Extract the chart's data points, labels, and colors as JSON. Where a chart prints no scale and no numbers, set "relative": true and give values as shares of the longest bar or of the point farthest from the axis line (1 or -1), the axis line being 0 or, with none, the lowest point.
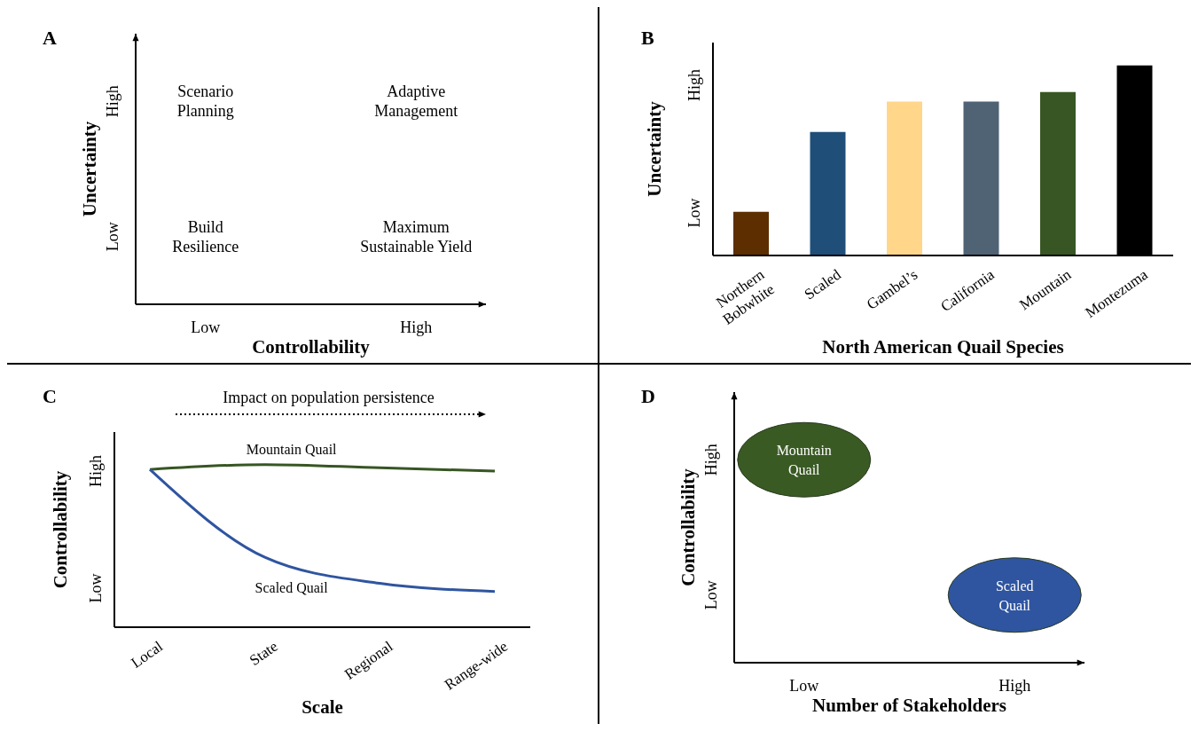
{
  "chart_data": [
    {
      "type": "other",
      "title": "A",
      "xlabel": "Controllability",
      "ylabel": "Uncertainty",
      "categories": [
        "Low",
        "High"
      ],
      "y_categories": [
        "High",
        "Low"
      ],
      "annotations": [
        {
          "text": "Scenario Planning",
          "x": "Low",
          "y": "High"
        },
        {
          "text": "Adaptive Management",
          "x": "High",
          "y": "High"
        },
        {
          "text": "Build Resilience",
          "x": "Low",
          "y": "Low"
        },
        {
          "text": "Maximum Sustainable Yield",
          "x": "High",
          "y": "Low"
        }
      ]
    },
    {
      "type": "bar",
      "title": "B",
      "xlabel": "North American Quail Species",
      "ylabel": "Uncertainty",
      "relative": true,
      "categories": [
        "Northern Bobwhite",
        "Scaled",
        "Gambel’s",
        "California",
        "Mountain",
        "Montezuma"
      ],
      "values": [
        0.23,
        0.65,
        0.81,
        0.81,
        0.86,
        1
      ],
      "colors": [
        "#5c2e00",
        "#1f4e79",
        "#ffd68a",
        "#4f6374",
        "#375623",
        "#000000"
      ],
      "annotations": [
        "Low",
        "High"
      ]
    },
    {
      "type": "line",
      "title": "C",
      "xlabel": "Scale",
      "ylabel": "Controllability",
      "relative": true,
      "categories": [
        "Local",
        "State",
        "Regional",
        "Range-wide"
      ],
      "series": [
        {
          "name": "Mountain Quail",
          "color": "#375623",
          "values": [
            0.97,
            1,
            0.98,
            0.96
          ]
        },
        {
          "name": "Scaled Quail",
          "color": "#2f55a0",
          "values": [
            0.97,
            0.43,
            0.27,
            0.22
          ]
        }
      ],
      "annotations": [
        "Low",
        "High",
        "Impact on population persistence"
      ]
    },
    {
      "type": "other",
      "title": "D",
      "xlabel": "Number of Stakeholders",
      "ylabel": "Controllability",
      "categories": [
        "Low",
        "High"
      ],
      "y_categories": [
        "High",
        "Low"
      ],
      "colors": [
        "#3a5a24",
        "#2f55a0"
      ],
      "annotations": [
        {
          "text": "Mountain Quail",
          "x": "Low",
          "y": "High"
        },
        {
          "text": "Scaled Quail",
          "x": "High",
          "y": "Low"
        }
      ]
    }
  ]
}
